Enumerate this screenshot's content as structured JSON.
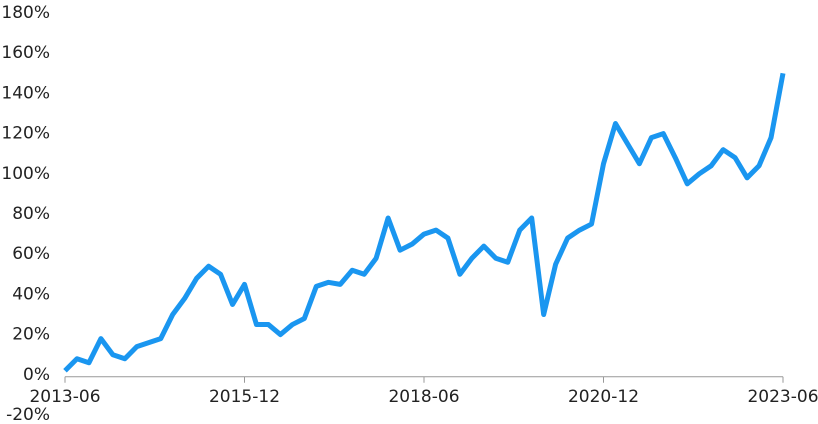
{
  "chart_data": {
    "type": "line",
    "x": [
      "2013-06",
      "2013-08",
      "2013-10",
      "2013-12",
      "2014-02",
      "2014-04",
      "2014-06",
      "2014-08",
      "2014-10",
      "2014-12",
      "2015-02",
      "2015-04",
      "2015-06",
      "2015-08",
      "2015-10",
      "2015-12",
      "2016-02",
      "2016-04",
      "2016-06",
      "2016-08",
      "2016-10",
      "2016-12",
      "2017-02",
      "2017-04",
      "2017-06",
      "2017-08",
      "2017-10",
      "2017-12",
      "2018-02",
      "2018-04",
      "2018-06",
      "2018-08",
      "2018-10",
      "2018-12",
      "2019-02",
      "2019-04",
      "2019-06",
      "2019-08",
      "2019-10",
      "2019-12",
      "2020-02",
      "2020-04",
      "2020-06",
      "2020-08",
      "2020-10",
      "2020-12",
      "2021-02",
      "2021-04",
      "2021-06",
      "2021-08",
      "2021-10",
      "2021-12",
      "2022-02",
      "2022-04",
      "2022-06",
      "2022-08",
      "2022-10",
      "2022-12",
      "2023-02",
      "2023-04",
      "2023-06"
    ],
    "series": [
      {
        "color": "#1a96f0",
        "values": [
          2,
          8,
          6,
          18,
          10,
          8,
          14,
          16,
          18,
          30,
          38,
          48,
          54,
          50,
          35,
          45,
          25,
          25,
          20,
          25,
          28,
          44,
          46,
          45,
          52,
          50,
          58,
          78,
          62,
          65,
          70,
          72,
          68,
          50,
          58,
          64,
          58,
          56,
          72,
          78,
          30,
          55,
          68,
          72,
          75,
          105,
          125,
          115,
          105,
          118,
          120,
          108,
          95,
          100,
          104,
          112,
          108,
          98,
          104,
          118,
          150
        ]
      }
    ],
    "xticks": [
      "2013-06",
      "2015-12",
      "2018-06",
      "2020-12",
      "2023-06"
    ],
    "ylim": [
      -20,
      180
    ],
    "yticks": [
      {
        "value": -20,
        "label": "-20%"
      },
      {
        "value": 0,
        "label": "0%"
      },
      {
        "value": 20,
        "label": "20%"
      },
      {
        "value": 40,
        "label": "40%"
      },
      {
        "value": 60,
        "label": "60%"
      },
      {
        "value": 80,
        "label": "80%"
      },
      {
        "value": 100,
        "label": "100%"
      },
      {
        "value": 120,
        "label": "120%"
      },
      {
        "value": 140,
        "label": "140%"
      },
      {
        "value": 160,
        "label": "160%"
      },
      {
        "value": 180,
        "label": "180%"
      }
    ]
  }
}
